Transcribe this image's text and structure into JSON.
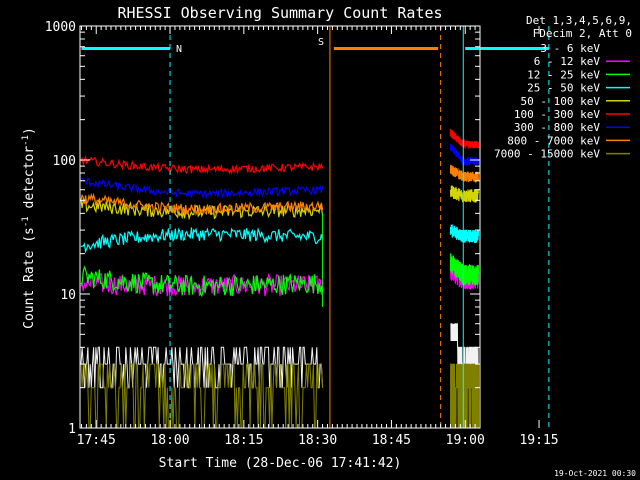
{
  "chart_data": {
    "type": "line",
    "title": "RHESSI Observing Summary Count Rates",
    "xlabel": "Start Time (28-Dec-06 17:41:42)",
    "ylabel_main": "Count Rate (s",
    "ylabel_exp1": "-1",
    "ylabel_mid": " detector",
    "ylabel_exp2": "-1",
    "ylabel_end": ")",
    "x_range_min": [
      41.7,
      123
    ],
    "y_scale": "log",
    "ylim": [
      1,
      1000
    ],
    "x_ticks": [
      {
        "t": 45,
        "label": "17:45"
      },
      {
        "t": 60,
        "label": "18:00"
      },
      {
        "t": 75,
        "label": "18:15"
      },
      {
        "t": 90,
        "label": "18:30"
      },
      {
        "t": 105,
        "label": "18:45"
      },
      {
        "t": 120,
        "label": "19:00"
      },
      {
        "t": 135,
        "label": "19:15"
      }
    ],
    "x_tick_minutes": [
      45,
      60,
      75,
      90,
      105,
      120,
      135
    ],
    "y_ticks": [
      {
        "v": 1,
        "label": "1"
      },
      {
        "v": 10,
        "label": "10"
      },
      {
        "v": 100,
        "label": "100"
      },
      {
        "v": 1000,
        "label": "1000"
      }
    ],
    "legend_header": [
      "Det 1,3,4,5,6,9,",
      "FDecim 2, Att 0"
    ],
    "series": [
      {
        "name": "3 - 6 keV",
        "color": "#000000",
        "seg1": [
          3.0,
          3.0
        ],
        "seg2": [
          5.5,
          3.0
        ]
      },
      {
        "name": "6 - 12 keV",
        "color": "#ff00ff",
        "seg1": [
          12.0,
          11.5
        ],
        "seg2": [
          15.0,
          13.0
        ]
      },
      {
        "name": "12 - 25 keV",
        "color": "#00ff00",
        "seg1": [
          13.5,
          11.5
        ],
        "seg2": [
          17.0,
          14.0
        ]
      },
      {
        "name": "25 - 50 keV",
        "color": "#00ffff",
        "seg1": [
          23.0,
          28.0
        ],
        "seg2": [
          30.0,
          27.0
        ]
      },
      {
        "name": "50 - 100 keV",
        "color": "#d4d400",
        "seg1": [
          46.0,
          41.0
        ],
        "seg2": [
          58.0,
          54.0
        ]
      },
      {
        "name": "100 - 300 keV",
        "color": "#ff0000",
        "seg1": [
          100.0,
          85.0
        ],
        "seg2": [
          160.0,
          130.0
        ]
      },
      {
        "name": "300 - 800 keV",
        "color": "#0000ff",
        "seg1": [
          70.0,
          56.0
        ],
        "seg2": [
          125.0,
          98.0
        ]
      },
      {
        "name": "800 - 7000 keV",
        "color": "#ff8000",
        "seg1": [
          52.0,
          43.0
        ],
        "seg2": [
          85.0,
          75.0
        ]
      },
      {
        "name": "7000 - 15000 keV",
        "color": "#808000",
        "seg1": [
          2.0,
          2.0
        ],
        "seg2": [
          2.0,
          2.0
        ]
      }
    ],
    "data_gap_min": [
      91.0,
      117.0
    ],
    "night_start": [
      {
        "t": 41.7,
        "label": ""
      },
      {
        "t": 119.6,
        "label": ""
      }
    ],
    "night_end": [
      {
        "t": 60.0,
        "label": "N"
      },
      {
        "t": 137.0,
        "label": ""
      }
    ],
    "saa_start": {
      "t": 92.5,
      "label": "S"
    },
    "saa_end": {
      "t": 115.0,
      "label": ""
    },
    "flag_bars": [
      {
        "t0": 42.0,
        "t1": 60.0,
        "color": "#00ffff"
      },
      {
        "t0": 93.3,
        "t1": 114.5,
        "color": "#ff8000"
      },
      {
        "t0": 120.0,
        "t1": 137.0,
        "color": "#00ffff"
      }
    ],
    "flag_level": 680,
    "footer_date": "19-Oct-2021 00:30"
  }
}
